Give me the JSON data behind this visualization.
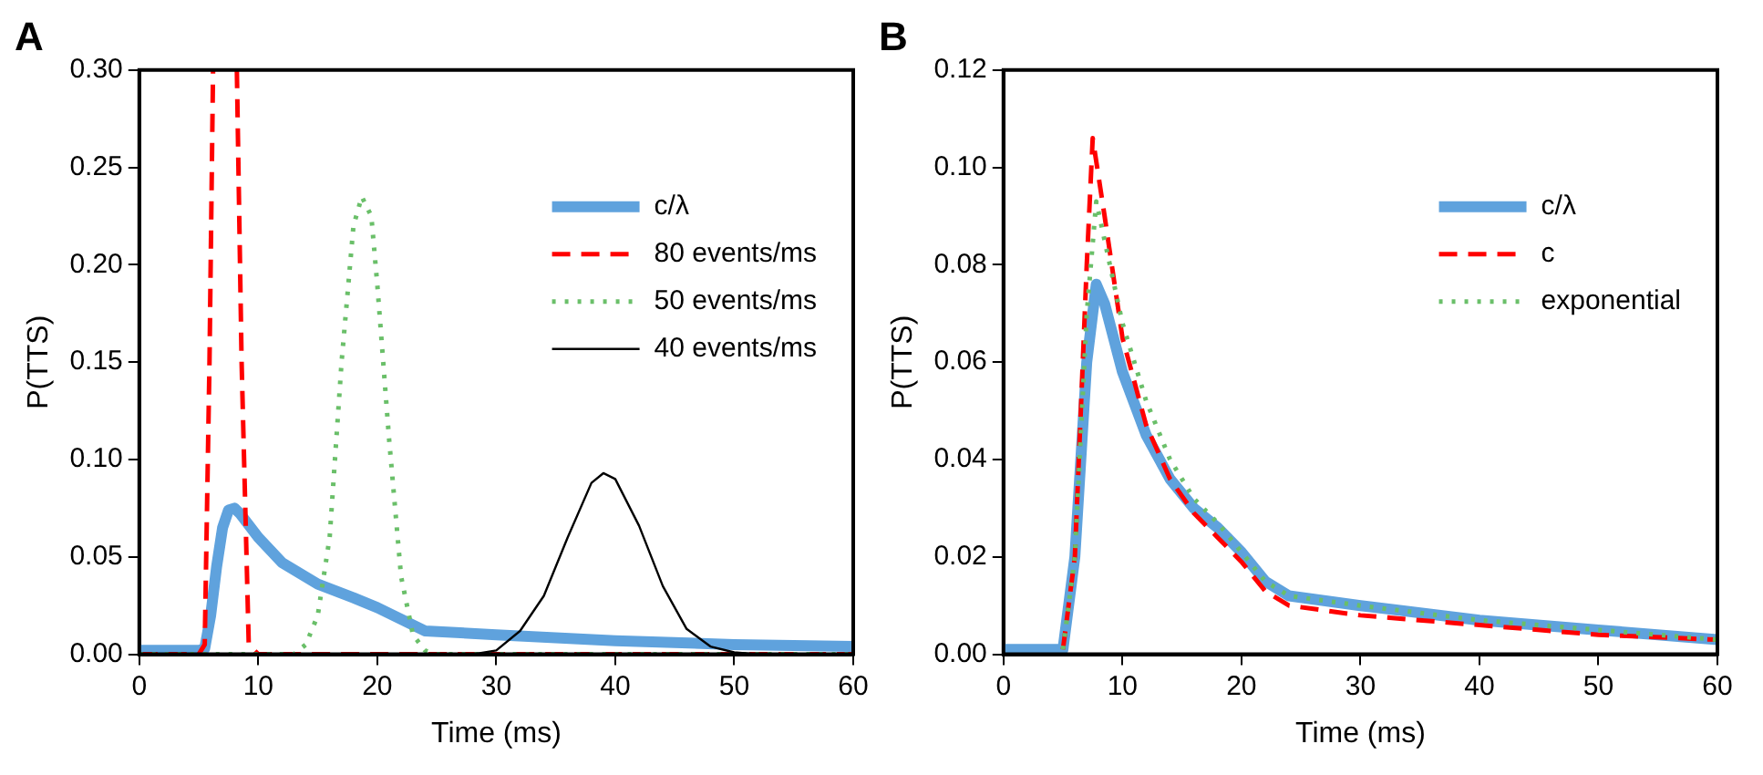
{
  "chart_data": [
    {
      "type": "line",
      "title": "A",
      "xlabel": "Time (ms)",
      "ylabel": "P(TTS)",
      "xlim": [
        0,
        60
      ],
      "xticks": [
        0,
        10,
        20,
        30,
        40,
        50,
        60
      ],
      "ylim": [
        0,
        0.3
      ],
      "yticks": [
        {
          "value": 0,
          "label": "0.00"
        },
        {
          "value": 0.05,
          "label": "0.05"
        },
        {
          "value": 0.1,
          "label": "0.10"
        },
        {
          "value": 0.15,
          "label": "0.15"
        },
        {
          "value": 0.2,
          "label": "0.20"
        },
        {
          "value": 0.25,
          "label": "0.25"
        },
        {
          "value": 0.3,
          "label": "0.30"
        }
      ],
      "grid": false,
      "legend": "top right",
      "marker": "none",
      "series": [
        {
          "name": "c/λ",
          "color": "#5fa2dd",
          "line_style": "solid",
          "x": [
            0,
            5,
            5.5,
            6,
            6.5,
            7,
            7.5,
            8,
            8.5,
            10,
            12,
            15,
            18,
            20,
            22,
            24,
            30,
            40,
            50,
            60
          ],
          "values": [
            0.002,
            0.002,
            0.003,
            0.02,
            0.045,
            0.065,
            0.074,
            0.075,
            0.072,
            0.06,
            0.047,
            0.036,
            0.029,
            0.024,
            0.018,
            0.012,
            0.01,
            0.007,
            0.005,
            0.004
          ]
        },
        {
          "name": "80 events/ms",
          "color": "#ff0000",
          "line_style": "dashed",
          "x": [
            0,
            5,
            5.5,
            5.9,
            6.2,
            7,
            8.2,
            8.6,
            9.2,
            10,
            60
          ],
          "values": [
            0,
            0,
            0.005,
            0.15,
            0.3,
            null,
            0.3,
            0.15,
            0.005,
            0,
            0
          ]
        },
        {
          "name": "50 events/ms",
          "color": "#6abf69",
          "line_style": "dotted",
          "x": [
            0,
            13,
            14,
            15,
            16,
            17,
            18,
            18.7,
            19.5,
            20,
            21,
            22,
            23,
            24,
            25,
            60
          ],
          "values": [
            0,
            0,
            0.005,
            0.02,
            0.06,
            0.15,
            0.22,
            0.235,
            0.225,
            0.19,
            0.11,
            0.04,
            0.01,
            0.002,
            0,
            0
          ]
        },
        {
          "name": "40 events/ms",
          "color": "#000000",
          "line_style": "solid",
          "x": [
            0,
            28,
            30,
            32,
            34,
            36,
            38,
            39,
            40,
            42,
            44,
            46,
            48,
            50,
            52,
            60
          ],
          "values": [
            0,
            0,
            0.002,
            0.012,
            0.03,
            0.06,
            0.088,
            0.093,
            0.09,
            0.066,
            0.035,
            0.013,
            0.004,
            0.001,
            0,
            0
          ]
        }
      ]
    },
    {
      "type": "line",
      "title": "B",
      "xlabel": "Time (ms)",
      "ylabel": "P(TTS)",
      "xlim": [
        0,
        60
      ],
      "xticks": [
        0,
        10,
        20,
        30,
        40,
        50,
        60
      ],
      "ylim": [
        0,
        0.12
      ],
      "yticks": [
        {
          "value": 0,
          "label": "0.00"
        },
        {
          "value": 0.02,
          "label": "0.02"
        },
        {
          "value": 0.04,
          "label": "0.04"
        },
        {
          "value": 0.06,
          "label": "0.06"
        },
        {
          "value": 0.08,
          "label": "0.08"
        },
        {
          "value": 0.1,
          "label": "0.10"
        },
        {
          "value": 0.12,
          "label": "0.12"
        }
      ],
      "grid": false,
      "legend": "top right",
      "marker": "none",
      "series": [
        {
          "name": "c/λ",
          "color": "#5fa2dd",
          "line_style": "solid",
          "x": [
            0,
            5,
            6,
            7,
            7.8,
            8.5,
            10,
            12,
            14,
            16,
            18,
            20,
            22,
            24,
            30,
            40,
            50,
            60
          ],
          "values": [
            0.001,
            0.001,
            0.02,
            0.06,
            0.076,
            0.072,
            0.058,
            0.045,
            0.036,
            0.03,
            0.026,
            0.021,
            0.015,
            0.012,
            0.01,
            0.007,
            0.005,
            0.003
          ]
        },
        {
          "name": "c",
          "color": "#ff0000",
          "line_style": "dashed",
          "x": [
            5,
            6,
            7,
            7.5,
            8.5,
            10,
            12,
            14,
            16,
            18,
            20,
            22,
            24,
            30,
            40,
            50,
            60
          ],
          "values": [
            0.001,
            0.02,
            0.08,
            0.106,
            0.09,
            0.065,
            0.047,
            0.036,
            0.029,
            0.024,
            0.019,
            0.013,
            0.01,
            0.008,
            0.006,
            0.004,
            0.003
          ]
        },
        {
          "name": "exponential",
          "color": "#6abf69",
          "line_style": "dotted",
          "x": [
            5,
            6,
            7,
            7.8,
            8.5,
            10,
            12,
            14,
            16,
            18,
            20,
            22,
            24,
            30,
            40,
            50,
            60
          ],
          "values": [
            0.001,
            0.02,
            0.07,
            0.093,
            0.085,
            0.068,
            0.052,
            0.04,
            0.032,
            0.027,
            0.021,
            0.015,
            0.012,
            0.01,
            0.007,
            0.005,
            0.003
          ]
        }
      ]
    }
  ]
}
